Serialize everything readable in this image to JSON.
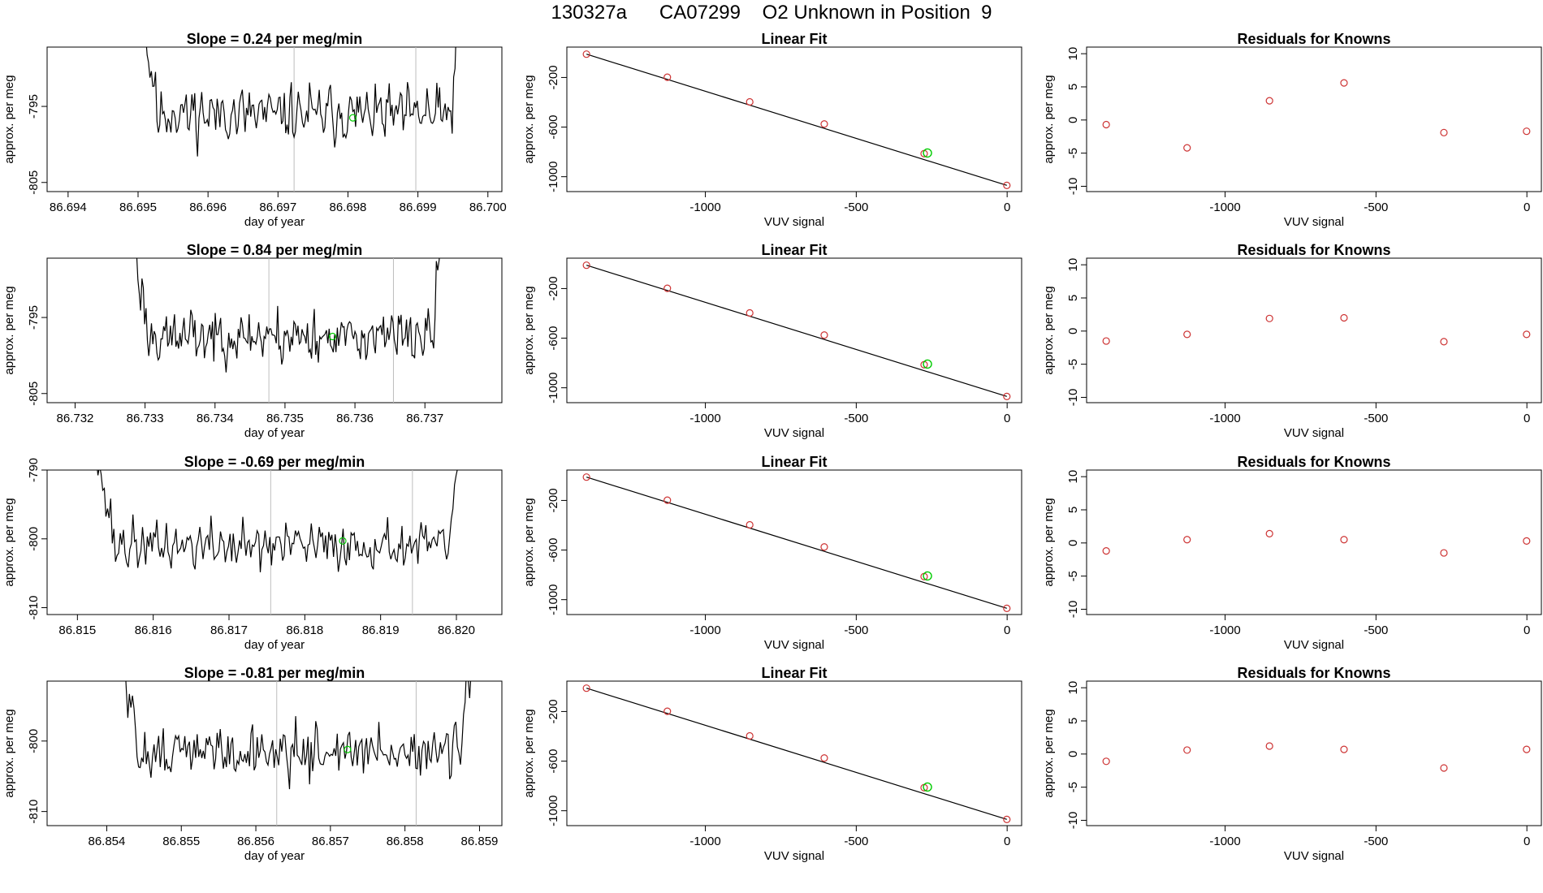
{
  "page_title": "130327a      CA07299    O2 Unknown in Position  9",
  "colors": {
    "known_point": "#cd3333",
    "unknown_point": "#00cc00",
    "line": "#000000",
    "window_line": "#bebebe"
  },
  "chart_data": [
    {
      "type": "line",
      "title": "Slope =  0.24  per meg/min",
      "xlabel": "day of year",
      "ylabel": "approx. per meg",
      "xlim": [
        86.6937,
        86.7002
      ],
      "ylim": [
        -806.2,
        -787.2
      ],
      "xticks": [
        "86.694",
        "86.695",
        "86.696",
        "86.697",
        "86.698",
        "86.699",
        "86.700"
      ],
      "yticks": [
        "-795",
        "-805"
      ],
      "start": 86.69505,
      "end": 86.69965,
      "vlines": [
        86.69723,
        86.69897
      ],
      "point": [
        86.69807,
        -796.5
      ],
      "level": -796,
      "noise": 2.0,
      "seed": 11
    },
    {
      "type": "scatter",
      "title": "Linear Fit",
      "xlabel": "VUV signal",
      "ylabel": "approx. per meg",
      "xlim": [
        -1459,
        48
      ],
      "ylim": [
        -1120,
        45
      ],
      "xticks": [
        "-1000",
        "-500",
        "0"
      ],
      "yticks": [
        "-200",
        "-600",
        "-1000"
      ],
      "known": [
        [
          -1394,
          -12
        ],
        [
          -1126,
          -198
        ],
        [
          -853,
          -397
        ],
        [
          -606,
          -575
        ],
        [
          -275,
          -814
        ],
        [
          -1,
          -1070
        ]
      ],
      "unknown": [
        -264,
        -809
      ],
      "fit": [
        [
          -1394,
          -12
        ],
        [
          -1,
          -1070
        ]
      ]
    },
    {
      "type": "scatter",
      "title": "Residuals for Knowns",
      "xlabel": "VUV signal",
      "ylabel": "approx. per meg",
      "xlim": [
        -1459,
        48
      ],
      "ylim": [
        -10.8,
        11
      ],
      "xticks": [
        "-1000",
        "-500",
        "0"
      ],
      "yticks": [
        "10",
        "5",
        "0",
        "-5",
        "-10"
      ],
      "known": [
        [
          -1394,
          -0.7
        ],
        [
          -1126,
          -4.2
        ],
        [
          -853,
          2.9
        ],
        [
          -606,
          5.6
        ],
        [
          -275,
          -1.9
        ],
        [
          -1,
          -1.7
        ]
      ]
    },
    {
      "type": "line",
      "title": "Slope =  0.84  per meg/min",
      "xlabel": "day of year",
      "ylabel": "approx. per meg",
      "xlim": [
        86.7316,
        86.7381
      ],
      "ylim": [
        -806.2,
        -787.2
      ],
      "xticks": [
        "86.732",
        "86.733",
        "86.734",
        "86.735",
        "86.736",
        "86.737"
      ],
      "yticks": [
        "-795",
        "-805"
      ],
      "start": 86.73282,
      "end": 86.73728,
      "vlines": [
        86.73477,
        86.73655
      ],
      "point": [
        86.73568,
        -797.5
      ],
      "level": -797.5,
      "noise": 1.9,
      "seed": 23
    },
    {
      "type": "scatter",
      "title": "Linear Fit",
      "xlabel": "VUV signal",
      "ylabel": "approx. per meg",
      "xlim": [
        -1459,
        48
      ],
      "ylim": [
        -1120,
        45
      ],
      "xticks": [
        "-1000",
        "-500",
        "0"
      ],
      "yticks": [
        "-200",
        "-600",
        "-1000"
      ],
      "known": [
        [
          -1394,
          -12
        ],
        [
          -1126,
          -198
        ],
        [
          -853,
          -397
        ],
        [
          -606,
          -575
        ],
        [
          -275,
          -814
        ],
        [
          -1,
          -1070
        ]
      ],
      "unknown": [
        -264,
        -809
      ],
      "fit": [
        [
          -1394,
          -12
        ],
        [
          -1,
          -1070
        ]
      ]
    },
    {
      "type": "scatter",
      "title": "Residuals for Knowns",
      "xlabel": "VUV signal",
      "ylabel": "approx. per meg",
      "xlim": [
        -1459,
        48
      ],
      "ylim": [
        -10.8,
        11
      ],
      "xticks": [
        "-1000",
        "-500",
        "0"
      ],
      "yticks": [
        "10",
        "5",
        "0",
        "-5",
        "-10"
      ],
      "known": [
        [
          -1394,
          -1.5
        ],
        [
          -1126,
          -0.5
        ],
        [
          -853,
          1.9
        ],
        [
          -606,
          2.0
        ],
        [
          -275,
          -1.6
        ],
        [
          -1,
          -0.5
        ]
      ]
    },
    {
      "type": "line",
      "title": "Slope =  -0.69  per meg/min",
      "xlabel": "day of year",
      "ylabel": "approx. per meg",
      "xlim": [
        86.8146,
        86.8206
      ],
      "ylim": [
        -811,
        -790
      ],
      "xticks": [
        "86.815",
        "86.816",
        "86.817",
        "86.818",
        "86.819",
        "86.820"
      ],
      "yticks": [
        "-790",
        "-800",
        "-810"
      ],
      "start": 86.81525,
      "end": 86.82008,
      "vlines": [
        86.81755,
        86.81942
      ],
      "point": [
        86.8185,
        -800.3
      ],
      "level": -801,
      "noise": 1.9,
      "seed": 37
    },
    {
      "type": "scatter",
      "title": "Linear Fit",
      "xlabel": "VUV signal",
      "ylabel": "approx. per meg",
      "xlim": [
        -1459,
        48
      ],
      "ylim": [
        -1120,
        45
      ],
      "xticks": [
        "-1000",
        "-500",
        "0"
      ],
      "yticks": [
        "-200",
        "-600",
        "-1000"
      ],
      "known": [
        [
          -1394,
          -12
        ],
        [
          -1126,
          -198
        ],
        [
          -853,
          -397
        ],
        [
          -606,
          -575
        ],
        [
          -275,
          -814
        ],
        [
          -1,
          -1070
        ]
      ],
      "unknown": [
        -264,
        -809
      ],
      "fit": [
        [
          -1394,
          -12
        ],
        [
          -1,
          -1070
        ]
      ]
    },
    {
      "type": "scatter",
      "title": "Residuals for Knowns",
      "xlabel": "VUV signal",
      "ylabel": "approx. per meg",
      "xlim": [
        -1459,
        48
      ],
      "ylim": [
        -10.8,
        11
      ],
      "xticks": [
        "-1000",
        "-500",
        "0"
      ],
      "yticks": [
        "10",
        "5",
        "0",
        "-5",
        "-10"
      ],
      "known": [
        [
          -1394,
          -1.2
        ],
        [
          -1126,
          0.5
        ],
        [
          -853,
          1.4
        ],
        [
          -606,
          0.5
        ],
        [
          -275,
          -1.5
        ],
        [
          -1,
          0.3
        ]
      ]
    },
    {
      "type": "line",
      "title": "Slope =  -0.81  per meg/min",
      "xlabel": "day of year",
      "ylabel": "approx. per meg",
      "xlim": [
        86.8532,
        86.8593
      ],
      "ylim": [
        -812,
        -791.5
      ],
      "xticks": [
        "86.854",
        "86.855",
        "86.856",
        "86.857",
        "86.858",
        "86.859"
      ],
      "yticks": [
        "-800",
        "-810"
      ],
      "start": 86.85418,
      "end": 86.85893,
      "vlines": [
        86.85628,
        86.85815
      ],
      "point": [
        86.85723,
        -801.2
      ],
      "level": -801.5,
      "noise": 2.0,
      "seed": 51
    },
    {
      "type": "scatter",
      "title": "Linear Fit",
      "xlabel": "VUV signal",
      "ylabel": "approx. per meg",
      "xlim": [
        -1459,
        48
      ],
      "ylim": [
        -1120,
        45
      ],
      "xticks": [
        "-1000",
        "-500",
        "0"
      ],
      "yticks": [
        "-200",
        "-600",
        "-1000"
      ],
      "known": [
        [
          -1394,
          -12
        ],
        [
          -1126,
          -198
        ],
        [
          -853,
          -397
        ],
        [
          -606,
          -575
        ],
        [
          -275,
          -814
        ],
        [
          -1,
          -1070
        ]
      ],
      "unknown": [
        -264,
        -809
      ],
      "fit": [
        [
          -1394,
          -12
        ],
        [
          -1,
          -1070
        ]
      ]
    },
    {
      "type": "scatter",
      "title": "Residuals for Knowns",
      "xlabel": "VUV signal",
      "ylabel": "approx. per meg",
      "xlim": [
        -1459,
        48
      ],
      "ylim": [
        -10.8,
        11
      ],
      "xticks": [
        "-1000",
        "-500",
        "0"
      ],
      "yticks": [
        "10",
        "5",
        "0",
        "-5",
        "-10"
      ],
      "known": [
        [
          -1394,
          -1.1
        ],
        [
          -1126,
          0.6
        ],
        [
          -853,
          1.2
        ],
        [
          -606,
          0.7
        ],
        [
          -275,
          -2.1
        ],
        [
          -1,
          0.7
        ]
      ]
    }
  ]
}
